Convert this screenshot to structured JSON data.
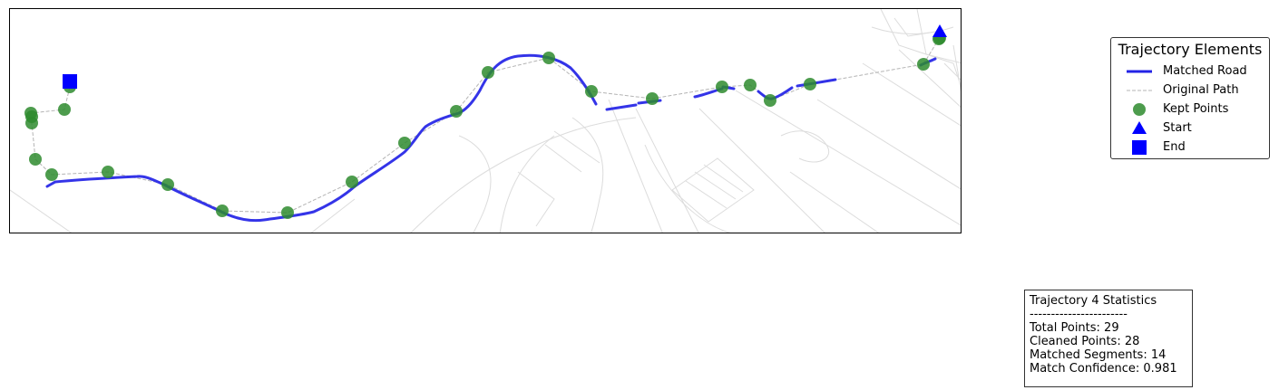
{
  "legend": {
    "title": "Trajectory Elements",
    "items": [
      {
        "label": "Matched Road",
        "icon": "blue-line-icon"
      },
      {
        "label": "Original Path",
        "icon": "gray-dashed-line-icon"
      },
      {
        "label": "Kept Points",
        "icon": "green-circle-icon"
      },
      {
        "label": "Start",
        "icon": "blue-triangle-icon"
      },
      {
        "label": "End",
        "icon": "blue-square-icon"
      }
    ]
  },
  "stats": {
    "title": "Trajectory 4 Statistics",
    "divider": "-----------------------",
    "total_points": "Total Points: 29",
    "cleaned_points": "Cleaned Points: 28",
    "matched_segments": "Matched Segments: 14",
    "match_confidence": "Match Confidence: 0.981"
  },
  "colors": {
    "matched_road": "#2323e6",
    "original_path": "#b4b4b4",
    "kept_points": "#2e8b2e",
    "start_end": "#0000ff",
    "road_network": "#dcdcdc"
  }
}
